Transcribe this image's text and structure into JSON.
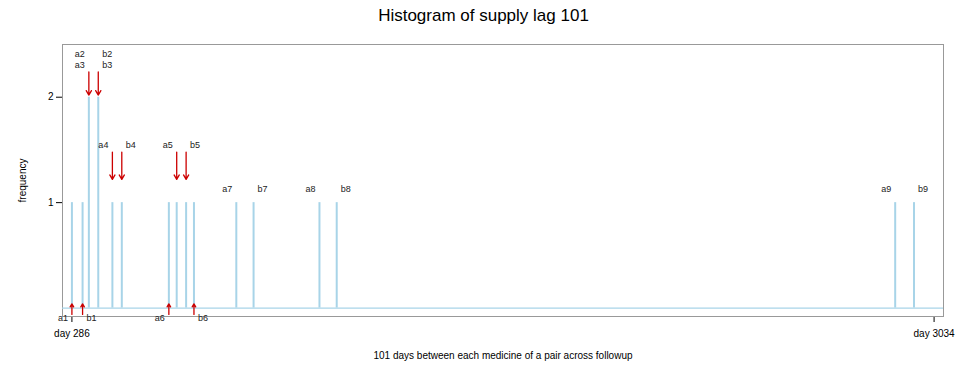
{
  "chart_data": {
    "type": "bar",
    "title": "Histogram of supply lag 101",
    "xlabel": "101 days between each medicine of a pair across followup",
    "ylabel": "frequency",
    "x": [
      286,
      320,
      340,
      370,
      415,
      445,
      595,
      620,
      650,
      675,
      810,
      865,
      1075,
      1130,
      2910,
      2970
    ],
    "values": [
      1,
      1,
      2,
      2,
      1,
      1,
      1,
      1,
      1,
      1,
      1,
      1,
      1,
      1,
      1,
      1
    ],
    "color": "#a8d4e8",
    "xlim": [
      256,
      3064
    ],
    "xticks": [
      {
        "value": 286,
        "label": "day 286"
      },
      {
        "value": 3034,
        "label": "day 3034"
      }
    ],
    "ylim": [
      -0.08,
      2.5
    ],
    "yticks": [
      1,
      2
    ],
    "grid": false,
    "annotations": [
      {
        "text": "a2",
        "x": 340,
        "y": 2.38,
        "anchor": "end"
      },
      {
        "text": "b2",
        "x": 370,
        "y": 2.38,
        "anchor": "start"
      },
      {
        "text": "a3",
        "x": 340,
        "y": 2.28,
        "anchor": "end"
      },
      {
        "text": "b3",
        "x": 370,
        "y": 2.28,
        "anchor": "start"
      },
      {
        "text": "a4",
        "x": 415,
        "y": 1.52,
        "anchor": "end"
      },
      {
        "text": "b4",
        "x": 445,
        "y": 1.52,
        "anchor": "start"
      },
      {
        "text": "a5",
        "x": 620,
        "y": 1.52,
        "anchor": "end"
      },
      {
        "text": "b5",
        "x": 650,
        "y": 1.52,
        "anchor": "start"
      },
      {
        "text": "a7",
        "x": 810,
        "y": 1.1,
        "anchor": "end"
      },
      {
        "text": "b7",
        "x": 865,
        "y": 1.1,
        "anchor": "start"
      },
      {
        "text": "a8",
        "x": 1075,
        "y": 1.1,
        "anchor": "end"
      },
      {
        "text": "b8",
        "x": 1130,
        "y": 1.1,
        "anchor": "start"
      },
      {
        "text": "a9",
        "x": 2910,
        "y": 1.1,
        "anchor": "end"
      },
      {
        "text": "b9",
        "x": 2970,
        "y": 1.1,
        "anchor": "start"
      },
      {
        "text": "a1",
        "x": 286,
        "y": -0.06,
        "anchor": "end"
      },
      {
        "text": "b1",
        "x": 320,
        "y": -0.06,
        "anchor": "start"
      },
      {
        "text": "a6",
        "x": 595,
        "y": -0.06,
        "anchor": "end"
      },
      {
        "text": "b6",
        "x": 675,
        "y": -0.06,
        "anchor": "start"
      }
    ],
    "arrows": [
      {
        "x": 340,
        "y_start": 2.24,
        "y_end": 2.02,
        "color": "#cc0000"
      },
      {
        "x": 370,
        "y_start": 2.24,
        "y_end": 2.02,
        "color": "#cc0000"
      },
      {
        "x": 415,
        "y_start": 1.48,
        "y_end": 1.22,
        "color": "#cc0000"
      },
      {
        "x": 445,
        "y_start": 1.48,
        "y_end": 1.22,
        "color": "#cc0000"
      },
      {
        "x": 620,
        "y_start": 1.48,
        "y_end": 1.22,
        "color": "#cc0000"
      },
      {
        "x": 650,
        "y_start": 1.48,
        "y_end": 1.22,
        "color": "#cc0000"
      },
      {
        "x": 286,
        "y_start": -0.06,
        "y_end": 0.04,
        "color": "#cc0000"
      },
      {
        "x": 320,
        "y_start": -0.06,
        "y_end": 0.04,
        "color": "#cc0000"
      },
      {
        "x": 595,
        "y_start": -0.06,
        "y_end": 0.04,
        "color": "#cc0000"
      },
      {
        "x": 675,
        "y_start": -0.06,
        "y_end": 0.04,
        "color": "#cc0000"
      }
    ]
  }
}
